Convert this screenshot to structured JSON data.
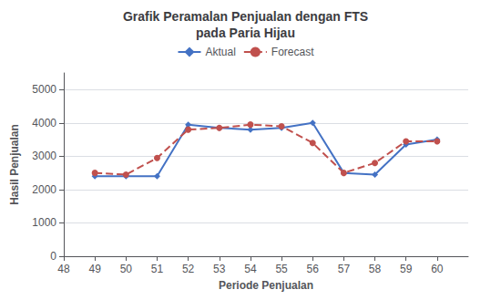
{
  "chart_data": {
    "type": "line",
    "title": "Grafik Peramalan Penjualan dengan FTS\npada Paria Hijau",
    "xlabel": "Periode Penjualan",
    "ylabel": "Hasil Penjualan",
    "x": [
      49,
      50,
      51,
      52,
      53,
      54,
      55,
      56,
      57,
      58,
      59,
      60
    ],
    "series": [
      {
        "name": "Aktual",
        "color": "#4472C4",
        "marker": "diamond",
        "line_style": "solid",
        "values": [
          2400,
          2400,
          2400,
          3950,
          3850,
          3800,
          3850,
          4000,
          2500,
          2450,
          3350,
          3500
        ]
      },
      {
        "name": "Forecast",
        "color": "#C0504D",
        "marker": "circle",
        "line_style": "dashed",
        "values": [
          2500,
          2450,
          2950,
          3800,
          3850,
          3950,
          3900,
          3400,
          2500,
          2800,
          3450,
          3450
        ]
      }
    ],
    "xlim": [
      48,
      61
    ],
    "ylim": [
      0,
      5500
    ],
    "xticks": [
      48,
      49,
      50,
      51,
      52,
      53,
      54,
      55,
      56,
      57,
      58,
      59,
      60
    ],
    "yticks": [
      0,
      1000,
      2000,
      3000,
      4000,
      5000
    ],
    "grid": true,
    "legend": "top"
  }
}
